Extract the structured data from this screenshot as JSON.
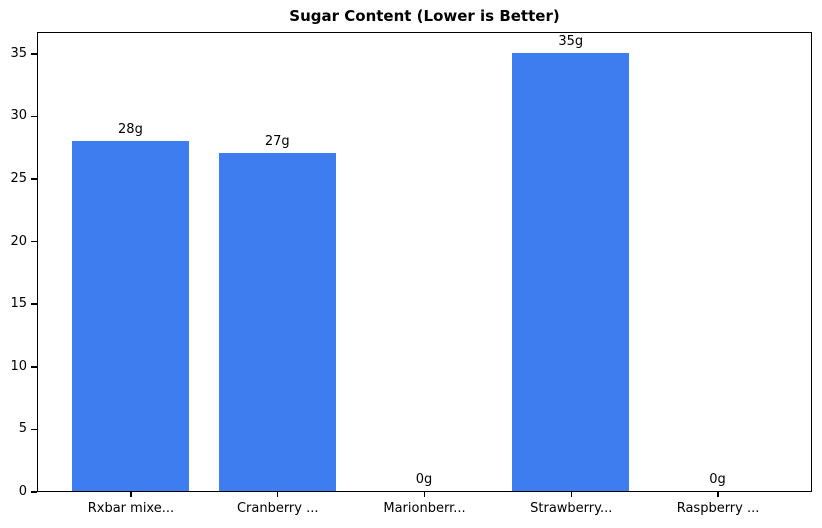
{
  "chart_data": {
    "type": "bar",
    "title": "Sugar Content (Lower is Better)",
    "categories": [
      "Rxbar mixe...",
      "Cranberry ...",
      "Marionberr...",
      "Strawberry...",
      "Raspberry ..."
    ],
    "values": [
      28,
      27,
      0,
      35,
      0
    ],
    "value_labels": [
      "28g",
      "27g",
      "0g",
      "35g",
      "0g"
    ],
    "xlabel": "",
    "ylabel": "",
    "ylim": [
      0,
      36.75
    ],
    "yticks": [
      0,
      5,
      10,
      15,
      20,
      25,
      30,
      35
    ],
    "bar_color": "#3e7df0",
    "axis_color": "#000000",
    "background_color": "#ffffff",
    "grid": false,
    "legend": "none"
  }
}
